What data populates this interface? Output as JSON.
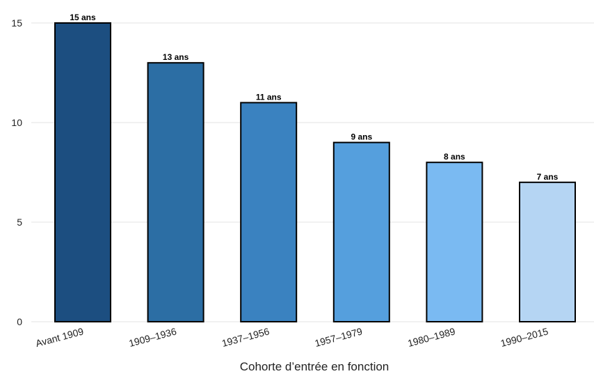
{
  "chart_data": {
    "type": "bar",
    "categories": [
      "Avant 1909",
      "1909–1936",
      "1937–1956",
      "1957–1979",
      "1980–1989",
      "1990–2015"
    ],
    "values": [
      15,
      13,
      11,
      9,
      8,
      7
    ],
    "data_labels": [
      "15 ans",
      "13 ans",
      "11 ans",
      "9 ans",
      "8 ans",
      "7 ans"
    ],
    "colors": [
      "#1c4e80",
      "#2c6ea4",
      "#3a82c0",
      "#559fdd",
      "#7abaf2",
      "#b5d5f3"
    ],
    "title": "",
    "xlabel": "Cohorte d’entrée en fonction",
    "ylabel": "",
    "ylim": [
      0,
      15
    ],
    "yticks": [
      0,
      5,
      10,
      15
    ],
    "grid": true,
    "legend": "none"
  }
}
